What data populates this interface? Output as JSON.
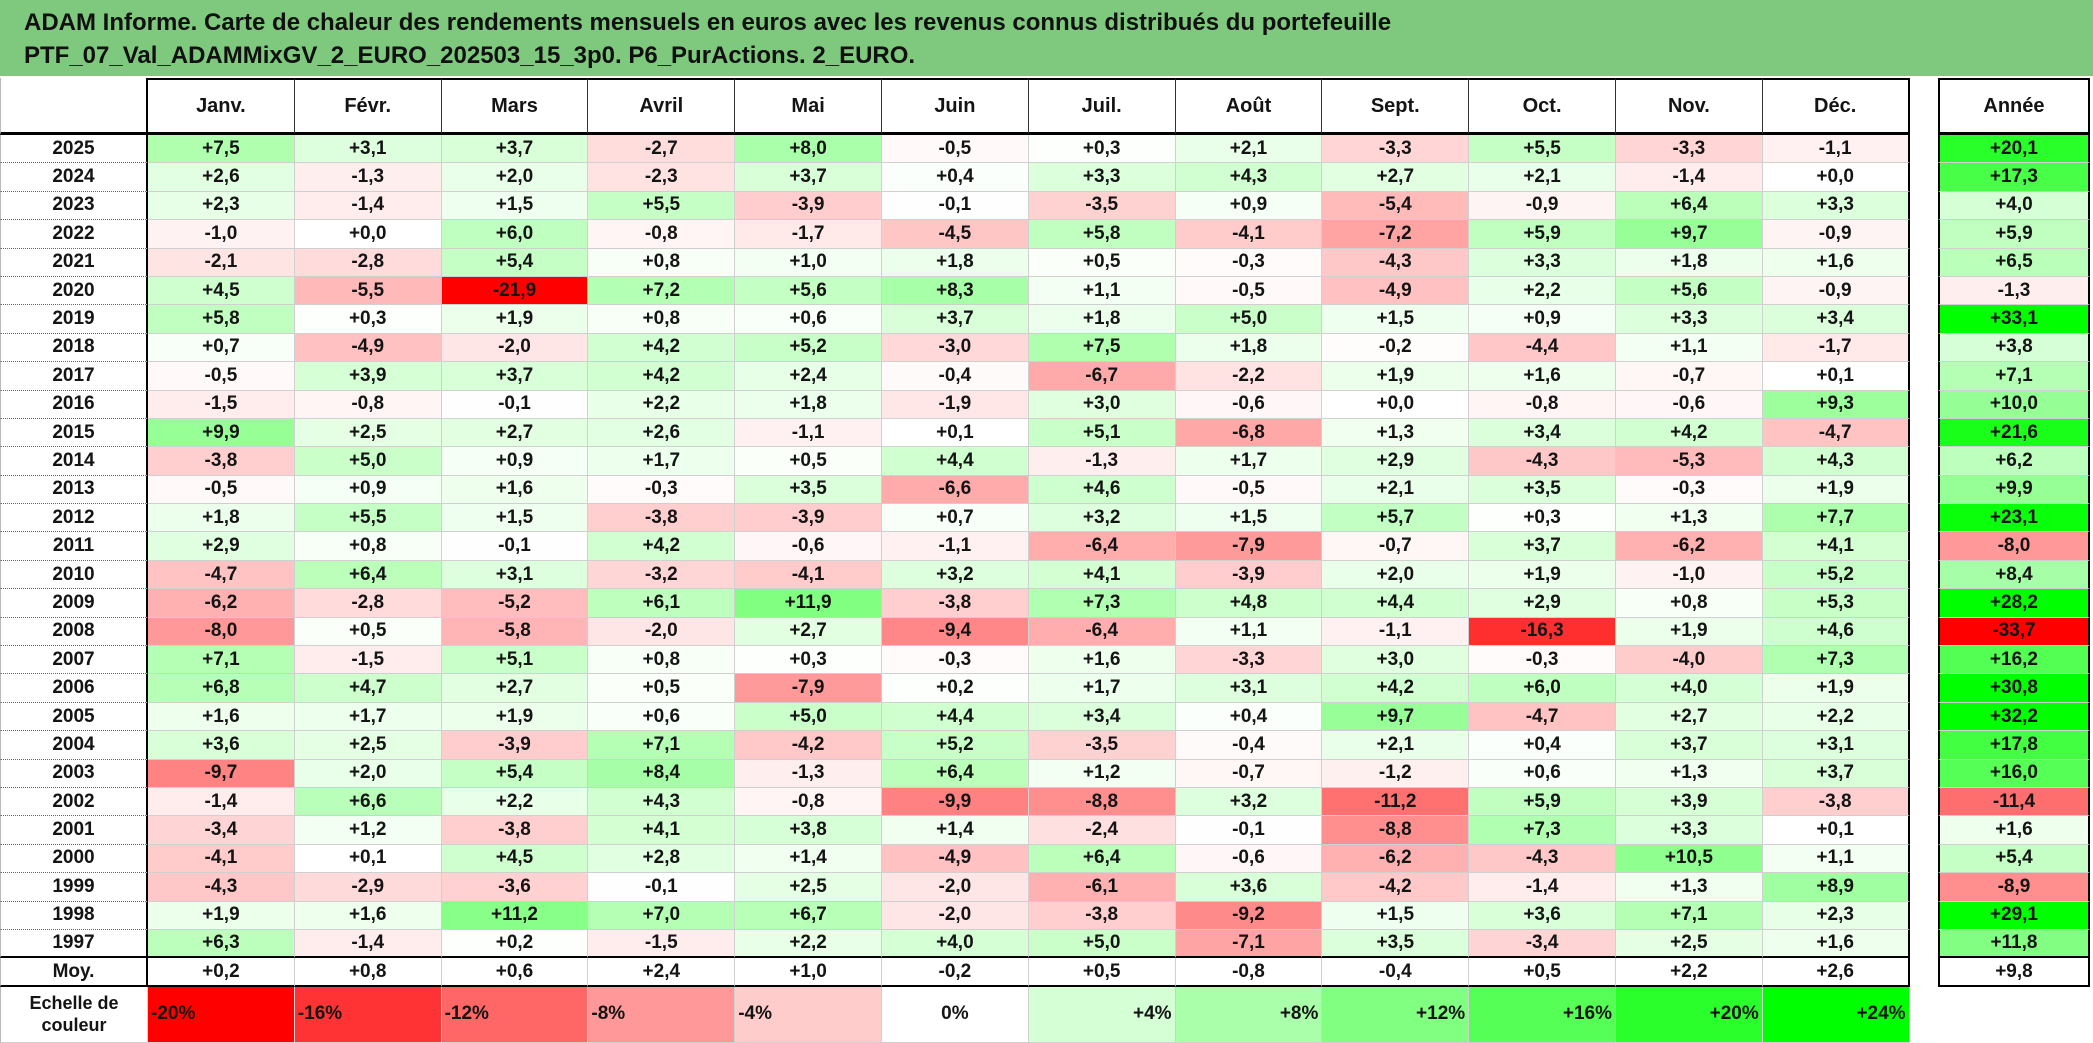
{
  "theme": {
    "title_bar_color": "#7fc97f"
  },
  "chart_data": {
    "type": "heatmap",
    "title_lines": [
      "ADAM Informe. Carte de chaleur des rendements mensuels en euros avec les revenus connus distribués du portefeuille",
      "PTF_07_Val_ADAMMixGV_2_EURO_202503_15_3p0. P6_PurActions. 2_EURO."
    ],
    "x_labels": [
      "Janv.",
      "Févr.",
      "Mars",
      "Avril",
      "Mai",
      "Juin",
      "Juil.",
      "Août",
      "Sept.",
      "Oct.",
      "Nov.",
      "Déc."
    ],
    "annual_label": "Année",
    "y_labels": [
      "2025",
      "2024",
      "2023",
      "2022",
      "2021",
      "2020",
      "2019",
      "2018",
      "2017",
      "2016",
      "2015",
      "2014",
      "2013",
      "2012",
      "2011",
      "2010",
      "2009",
      "2008",
      "2007",
      "2006",
      "2005",
      "2004",
      "2003",
      "2002",
      "2001",
      "2000",
      "1999",
      "1998",
      "1997"
    ],
    "values": [
      [
        7.5,
        3.1,
        3.7,
        -2.7,
        8.0,
        -0.5,
        0.3,
        2.1,
        -3.3,
        5.5,
        -3.3,
        -1.1
      ],
      [
        2.6,
        -1.3,
        2.0,
        -2.3,
        3.7,
        0.4,
        3.3,
        4.3,
        2.7,
        2.1,
        -1.4,
        0.0
      ],
      [
        2.3,
        -1.4,
        1.5,
        5.5,
        -3.9,
        -0.1,
        -3.5,
        0.9,
        -5.4,
        -0.9,
        6.4,
        3.3
      ],
      [
        -1.0,
        0.0,
        6.0,
        -0.8,
        -1.7,
        -4.5,
        5.8,
        -4.1,
        -7.2,
        5.9,
        9.7,
        -0.9
      ],
      [
        -2.1,
        -2.8,
        5.4,
        0.8,
        1.0,
        1.8,
        0.5,
        -0.3,
        -4.3,
        3.3,
        1.8,
        1.6
      ],
      [
        4.5,
        -5.5,
        -21.9,
        7.2,
        5.6,
        8.3,
        1.1,
        -0.5,
        -4.9,
        2.2,
        5.6,
        -0.9
      ],
      [
        5.8,
        0.3,
        1.9,
        0.8,
        0.6,
        3.7,
        1.8,
        5.0,
        1.5,
        0.9,
        3.3,
        3.4
      ],
      [
        0.7,
        -4.9,
        -2.0,
        4.2,
        5.2,
        -3.0,
        7.5,
        1.8,
        -0.2,
        -4.4,
        1.1,
        -1.7
      ],
      [
        -0.5,
        3.9,
        3.7,
        4.2,
        2.4,
        -0.4,
        -6.7,
        -2.2,
        1.9,
        1.6,
        -0.7,
        0.1
      ],
      [
        -1.5,
        -0.8,
        -0.1,
        2.2,
        1.8,
        -1.9,
        3.0,
        -0.6,
        0.0,
        -0.8,
        -0.6,
        9.3
      ],
      [
        9.9,
        2.5,
        2.7,
        2.6,
        -1.1,
        0.1,
        5.1,
        -6.8,
        1.3,
        3.4,
        4.2,
        -4.7
      ],
      [
        -3.8,
        5.0,
        0.9,
        1.7,
        0.5,
        4.4,
        -1.3,
        1.7,
        2.9,
        -4.3,
        -5.3,
        4.3
      ],
      [
        -0.5,
        0.9,
        1.6,
        -0.3,
        3.5,
        -6.6,
        4.6,
        -0.5,
        2.1,
        3.5,
        -0.3,
        1.9
      ],
      [
        1.8,
        5.5,
        1.5,
        -3.8,
        -3.9,
        0.7,
        3.2,
        1.5,
        5.7,
        0.3,
        1.3,
        7.7
      ],
      [
        2.9,
        0.8,
        -0.1,
        4.2,
        -0.6,
        -1.1,
        -6.4,
        -7.9,
        -0.7,
        3.7,
        -6.2,
        4.1
      ],
      [
        -4.7,
        6.4,
        3.1,
        -3.2,
        -4.1,
        3.2,
        4.1,
        -3.9,
        2.0,
        1.9,
        -1.0,
        5.2
      ],
      [
        -6.2,
        -2.8,
        -5.2,
        6.1,
        11.9,
        -3.8,
        7.3,
        4.8,
        4.4,
        2.9,
        0.8,
        5.3
      ],
      [
        -8.0,
        0.5,
        -5.8,
        -2.0,
        2.7,
        -9.4,
        -6.4,
        1.1,
        -1.1,
        -16.3,
        1.9,
        4.6
      ],
      [
        7.1,
        -1.5,
        5.1,
        0.8,
        0.3,
        -0.3,
        1.6,
        -3.3,
        3.0,
        -0.3,
        -4.0,
        7.3
      ],
      [
        6.8,
        4.7,
        2.7,
        0.5,
        -7.9,
        0.2,
        1.7,
        3.1,
        4.2,
        6.0,
        4.0,
        1.9
      ],
      [
        1.6,
        1.7,
        1.9,
        0.6,
        5.0,
        4.4,
        3.4,
        0.4,
        9.7,
        -4.7,
        2.7,
        2.2
      ],
      [
        3.6,
        2.5,
        -3.9,
        7.1,
        -4.2,
        5.2,
        -3.5,
        -0.4,
        2.1,
        0.4,
        3.7,
        3.1
      ],
      [
        -9.7,
        2.0,
        5.4,
        8.4,
        -1.3,
        6.4,
        1.2,
        -0.7,
        -1.2,
        0.6,
        1.3,
        3.7
      ],
      [
        -1.4,
        6.6,
        2.2,
        4.3,
        -0.8,
        -9.9,
        -8.8,
        3.2,
        -11.2,
        5.9,
        3.9,
        -3.8
      ],
      [
        -3.4,
        1.2,
        -3.8,
        4.1,
        3.8,
        1.4,
        -2.4,
        -0.1,
        -8.8,
        7.3,
        3.3,
        0.1
      ],
      [
        -4.1,
        0.1,
        4.5,
        2.8,
        1.4,
        -4.9,
        6.4,
        -0.6,
        -6.2,
        -4.3,
        10.5,
        1.1
      ],
      [
        -4.3,
        -2.9,
        -3.6,
        -0.1,
        2.5,
        -2.0,
        -6.1,
        3.6,
        -4.2,
        -1.4,
        1.3,
        8.9
      ],
      [
        1.9,
        1.6,
        11.2,
        7.0,
        6.7,
        -2.0,
        -3.8,
        -9.2,
        1.5,
        3.6,
        7.1,
        2.3
      ],
      [
        6.3,
        -1.4,
        0.2,
        -1.5,
        2.2,
        4.0,
        5.0,
        -7.1,
        3.5,
        -3.4,
        2.5,
        1.6
      ]
    ],
    "annual": [
      20.1,
      17.3,
      4.0,
      5.9,
      6.5,
      -1.3,
      33.1,
      3.8,
      7.1,
      10.0,
      21.6,
      6.2,
      9.9,
      23.1,
      -8.0,
      8.4,
      28.2,
      -33.7,
      16.2,
      30.8,
      32.2,
      17.8,
      16.0,
      -11.4,
      1.6,
      5.4,
      -8.9,
      29.1,
      11.8
    ],
    "average_label": "Moy.",
    "average": [
      0.2,
      0.8,
      0.6,
      2.4,
      1.0,
      -0.2,
      0.5,
      -0.8,
      -0.4,
      0.5,
      2.2,
      2.6
    ],
    "average_annual": 9.8,
    "color_scale": {
      "label_lines": [
        "Echelle de",
        "couleur"
      ],
      "steps": [
        -20,
        -16,
        -12,
        -8,
        -4,
        0,
        4,
        8,
        12,
        16,
        20,
        24
      ],
      "step_labels": [
        "-20%",
        "-16%",
        "-12%",
        "-8%",
        "-4%",
        "0%",
        "+4%",
        "+8%",
        "+12%",
        "+16%",
        "+20%",
        "+24%"
      ],
      "min": -20,
      "max": 24,
      "min_color": "#ff0000",
      "mid_color": "#ffffff",
      "max_color": "#00ff00"
    }
  }
}
